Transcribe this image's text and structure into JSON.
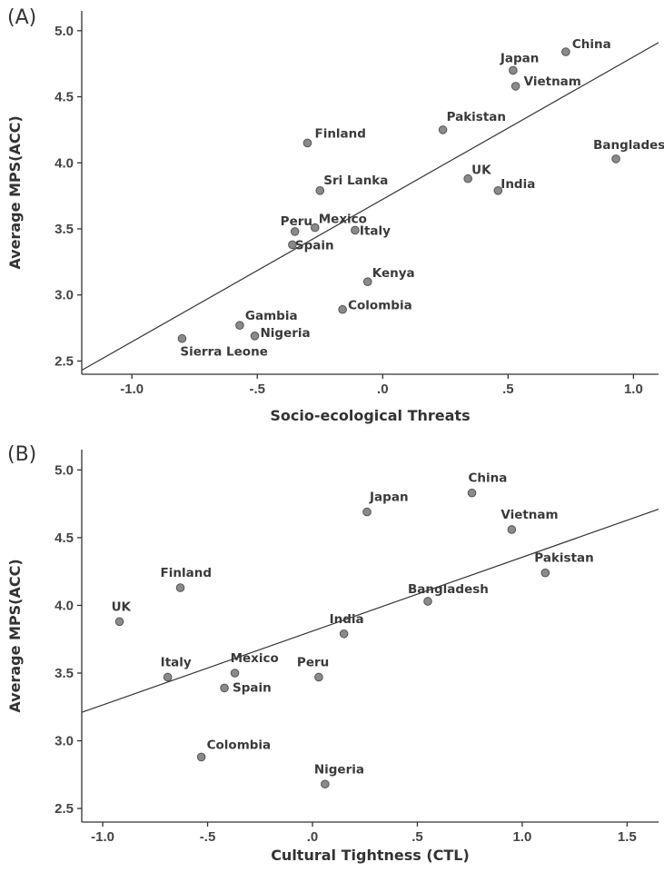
{
  "chart_data": [
    {
      "type": "scatter",
      "panel_label": "(A)",
      "xlabel": "Socio-ecological Threats",
      "ylabel": "Average MPS(ACC)",
      "xlim": [
        -1.2,
        1.1
      ],
      "ylim": [
        2.4,
        5.15
      ],
      "x_ticks": [
        -1.0,
        -0.5,
        0.0,
        0.5,
        1.0
      ],
      "x_tick_labels": [
        "-1.0",
        "-.5",
        ".0",
        ".5",
        "1.0"
      ],
      "y_ticks": [
        2.5,
        3.0,
        3.5,
        4.0,
        4.5,
        5.0
      ],
      "y_tick_labels": [
        "2.5",
        "3.0",
        "3.5",
        "4.0",
        "4.5",
        "5.0"
      ],
      "grid": false,
      "fit_line": {
        "x": [
          -1.2,
          1.1
        ],
        "y": [
          2.43,
          4.91
        ]
      },
      "points": [
        {
          "label": "China",
          "x": 0.73,
          "y": 4.84
        },
        {
          "label": "Japan",
          "x": 0.52,
          "y": 4.7
        },
        {
          "label": "Vietnam",
          "x": 0.53,
          "y": 4.58
        },
        {
          "label": "Pakistan",
          "x": 0.24,
          "y": 4.25
        },
        {
          "label": "Finland",
          "x": -0.3,
          "y": 4.15
        },
        {
          "label": "Bangladesh",
          "x": 0.93,
          "y": 4.03
        },
        {
          "label": "UK",
          "x": 0.34,
          "y": 3.88
        },
        {
          "label": "India",
          "x": 0.46,
          "y": 3.79
        },
        {
          "label": "Sri Lanka",
          "x": -0.25,
          "y": 3.79
        },
        {
          "label": "Peru",
          "x": -0.35,
          "y": 3.48
        },
        {
          "label": "Mexico",
          "x": -0.27,
          "y": 3.51
        },
        {
          "label": "Italy",
          "x": -0.11,
          "y": 3.49
        },
        {
          "label": "Spain",
          "x": -0.36,
          "y": 3.38
        },
        {
          "label": "Kenya",
          "x": -0.06,
          "y": 3.1
        },
        {
          "label": "Colombia",
          "x": -0.16,
          "y": 2.89
        },
        {
          "label": "Gambia",
          "x": -0.57,
          "y": 2.77
        },
        {
          "label": "Nigeria",
          "x": -0.51,
          "y": 2.69
        },
        {
          "label": "Sierra Leone",
          "x": -0.8,
          "y": 2.67
        }
      ]
    },
    {
      "type": "scatter",
      "panel_label": "(B)",
      "xlabel": "Cultural Tightness (CTL)",
      "ylabel": "Average MPS(ACC)",
      "xlim": [
        -1.1,
        1.65
      ],
      "ylim": [
        2.4,
        5.15
      ],
      "x_ticks": [
        -1.0,
        -0.5,
        0.0,
        0.5,
        1.0,
        1.5
      ],
      "x_tick_labels": [
        "-1.0",
        "-.5",
        ".0",
        ".5",
        "1.0",
        "1.5"
      ],
      "y_ticks": [
        2.5,
        3.0,
        3.5,
        4.0,
        4.5,
        5.0
      ],
      "y_tick_labels": [
        "2.5",
        "3.0",
        "3.5",
        "4.0",
        "4.5",
        "5.0"
      ],
      "grid": false,
      "fit_line": {
        "x": [
          -1.1,
          1.65
        ],
        "y": [
          3.21,
          4.71
        ]
      },
      "points": [
        {
          "label": "China",
          "x": 0.76,
          "y": 4.83
        },
        {
          "label": "Japan",
          "x": 0.26,
          "y": 4.69
        },
        {
          "label": "Vietnam",
          "x": 0.95,
          "y": 4.56
        },
        {
          "label": "Pakistan",
          "x": 1.11,
          "y": 4.24
        },
        {
          "label": "Finland",
          "x": -0.63,
          "y": 4.13
        },
        {
          "label": "Bangladesh",
          "x": 0.55,
          "y": 4.03
        },
        {
          "label": "UK",
          "x": -0.92,
          "y": 3.88
        },
        {
          "label": "India",
          "x": 0.15,
          "y": 3.79
        },
        {
          "label": "Italy",
          "x": -0.69,
          "y": 3.47
        },
        {
          "label": "Mexico",
          "x": -0.37,
          "y": 3.5
        },
        {
          "label": "Peru",
          "x": 0.03,
          "y": 3.47
        },
        {
          "label": "Spain",
          "x": -0.42,
          "y": 3.39
        },
        {
          "label": "Colombia",
          "x": -0.53,
          "y": 2.88
        },
        {
          "label": "Nigeria",
          "x": 0.06,
          "y": 2.68
        }
      ]
    }
  ]
}
